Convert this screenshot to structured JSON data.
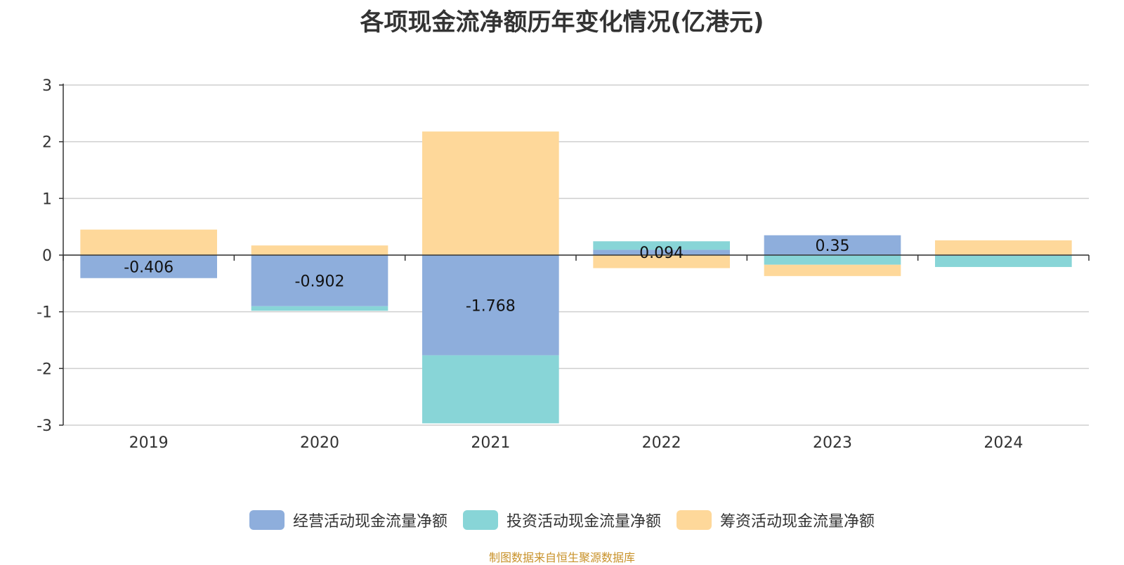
{
  "chart_data": {
    "type": "bar",
    "stacked": true,
    "title": "各项现金流净额历年变化情况(亿港元)",
    "categories": [
      "2019",
      "2020",
      "2021",
      "2022",
      "2023",
      "2024"
    ],
    "series": [
      {
        "name": "经营活动现金流量净额",
        "color": "#8eaedc",
        "values": [
          -0.406,
          -0.902,
          -1.768,
          0.094,
          0.35,
          -0.01
        ],
        "labels": [
          "-0.406",
          "-0.902",
          "-1.768",
          "0.094",
          "0.35",
          ""
        ]
      },
      {
        "name": "投资活动现金流量净额",
        "color": "#88d5d7",
        "values": [
          0.0,
          -0.08,
          -1.2,
          0.15,
          -0.17,
          -0.2
        ],
        "labels": [
          "",
          "",
          "",
          "",
          "",
          ""
        ]
      },
      {
        "name": "筹资活动现金流量净额",
        "color": "#fed89a",
        "values": [
          0.45,
          0.17,
          2.18,
          -0.23,
          -0.2,
          0.26
        ],
        "labels": [
          "",
          "",
          "",
          "",
          "",
          ""
        ]
      }
    ],
    "yticks": [
      "3",
      "2",
      "1",
      "0",
      "-1",
      "-2",
      "-3"
    ],
    "ylim": [
      -3,
      3
    ],
    "grid": true,
    "legend_position": "bottom"
  },
  "source_note": "制图数据来自恒生聚源数据库"
}
